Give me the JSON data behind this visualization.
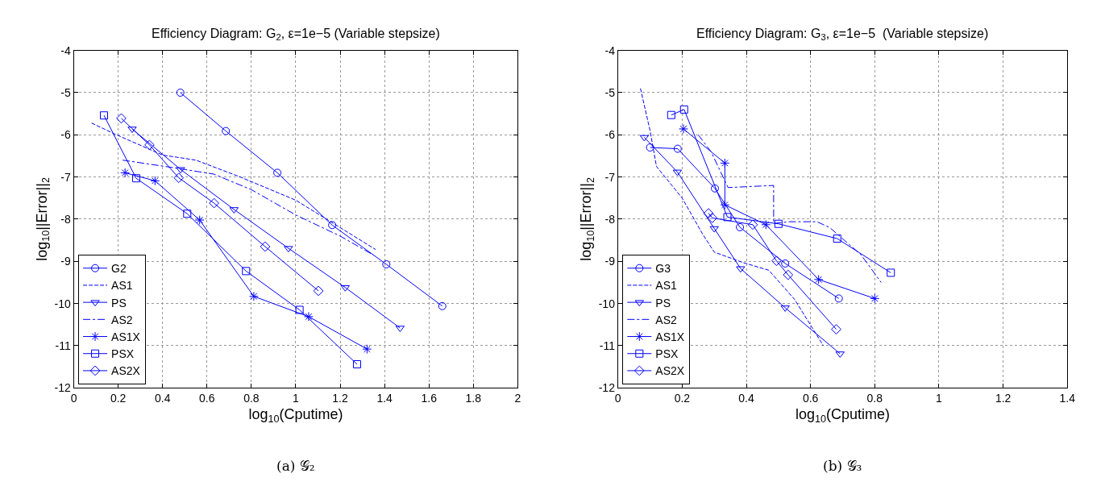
{
  "chart_data": [
    {
      "type": "line",
      "title": "Efficiency Diagram: G$_{2}$, ε=1e−5 (Variable stepsize)",
      "xlabel": "log$_{10}$(Cputime)",
      "ylabel": "log$_{10}$||Error||$_{2}$",
      "xlim": [
        0,
        2
      ],
      "xticks": [
        0,
        0.2,
        0.4,
        0.6,
        0.8,
        1,
        1.2,
        1.4,
        1.6,
        1.8,
        2
      ],
      "ylim": [
        -12,
        -4
      ],
      "yticks": [
        -12,
        -11,
        -10,
        -9,
        -8,
        -7,
        -6,
        -5,
        -4
      ],
      "grid": true,
      "legend": "bottom left",
      "annotations": [
        "(a) 𝒢₂"
      ],
      "series": [
        {
          "name": "G2",
          "color": "#0000ff",
          "marker": "circle",
          "line_style": "solid",
          "x": [
            0.48,
            0.685,
            0.917,
            1.164,
            1.408,
            1.66
          ],
          "values": [
            -5.0,
            -5.91,
            -6.9,
            -8.14,
            -9.07,
            -10.06
          ]
        },
        {
          "name": "AS1",
          "color": "#0000ff",
          "marker": "none",
          "line_style": "dashed",
          "x": [
            0.08,
            0.18,
            0.4,
            0.55,
            0.75,
            1.0,
            1.2,
            1.36
          ],
          "values": [
            -5.72,
            -5.97,
            -6.48,
            -6.6,
            -7.0,
            -7.55,
            -8.2,
            -8.72
          ]
        },
        {
          "name": "PS",
          "color": "#0000ff",
          "marker": "triangle",
          "line_style": "solid",
          "x": [
            0.263,
            0.481,
            0.722,
            0.967,
            1.223,
            1.47
          ],
          "values": [
            -5.86,
            -6.82,
            -7.77,
            -8.69,
            -9.62,
            -10.58
          ]
        },
        {
          "name": "AS2",
          "color": "#0000ff",
          "marker": "none",
          "line_style": "dashdot",
          "x": [
            0.22,
            0.45,
            0.63,
            0.8,
            1.0,
            1.2,
            1.35
          ],
          "values": [
            -6.6,
            -6.78,
            -6.93,
            -7.3,
            -7.9,
            -8.4,
            -8.85
          ]
        },
        {
          "name": "AS1X",
          "color": "#0000ff",
          "marker": "cross",
          "line_style": "solid",
          "x": [
            0.231,
            0.366,
            0.567,
            0.811,
            1.058,
            1.321
          ],
          "values": [
            -6.9,
            -7.09,
            -8.02,
            -9.83,
            -10.31,
            -11.08
          ]
        },
        {
          "name": "PSX",
          "color": "#0000ff",
          "marker": "square",
          "line_style": "solid",
          "x": [
            0.136,
            0.281,
            0.511,
            0.776,
            1.017,
            1.276
          ],
          "values": [
            -5.54,
            -7.03,
            -7.87,
            -9.23,
            -10.15,
            -11.44
          ]
        },
        {
          "name": "AS2X",
          "color": "#0000ff",
          "marker": "diamond",
          "line_style": "solid",
          "x": [
            0.214,
            0.341,
            0.473,
            0.632,
            0.862,
            1.102
          ],
          "values": [
            -5.61,
            -6.24,
            -7.02,
            -7.62,
            -8.65,
            -9.7
          ]
        }
      ]
    },
    {
      "type": "line",
      "title": "Efficiency Diagram: G$_{3}$, ε=1e−5  (Variable stepsize)",
      "xlabel": "log$_{10}$(Cputime)",
      "ylabel": "log$_{10}$||Error||$_{2}$",
      "xlim": [
        0,
        1.4
      ],
      "xticks": [
        0,
        0.2,
        0.4,
        0.6,
        0.8,
        1,
        1.2,
        1.4
      ],
      "ylim": [
        -12,
        -4
      ],
      "yticks": [
        -12,
        -11,
        -10,
        -9,
        -8,
        -7,
        -6,
        -5,
        -4
      ],
      "grid": true,
      "legend": "bottom left",
      "annotations": [
        "(b) 𝒢₃"
      ],
      "series": [
        {
          "name": "G3",
          "color": "#0000ff",
          "marker": "circle",
          "line_style": "solid",
          "x": [
            0.1,
            0.186,
            0.302,
            0.38,
            0.521,
            0.688
          ],
          "values": [
            -6.3,
            -6.33,
            -7.27,
            -8.19,
            -9.05,
            -9.88
          ]
        },
        {
          "name": "AS1",
          "color": "#0000ff",
          "marker": "none",
          "line_style": "dashed",
          "x": [
            0.07,
            0.1,
            0.12,
            0.2,
            0.265,
            0.3,
            0.39,
            0.47,
            0.55,
            0.64
          ],
          "values": [
            -4.9,
            -5.9,
            -6.75,
            -7.5,
            -8.37,
            -8.78,
            -9.03,
            -9.21,
            -9.9,
            -11.0
          ]
        },
        {
          "name": "PS",
          "color": "#0000ff",
          "marker": "triangle",
          "line_style": "solid",
          "x": [
            0.082,
            0.185,
            0.3,
            0.382,
            0.521,
            0.692
          ],
          "values": [
            -6.06,
            -6.88,
            -8.22,
            -9.17,
            -10.1,
            -11.19
          ]
        },
        {
          "name": "AS2",
          "color": "#0000ff",
          "marker": "none",
          "line_style": "dashdot",
          "x": [
            0.25,
            0.29,
            0.343,
            0.485,
            0.485,
            0.535,
            0.62,
            0.66,
            0.757,
            0.82
          ],
          "values": [
            -6.0,
            -6.4,
            -7.25,
            -7.2,
            -8.1,
            -8.06,
            -8.06,
            -8.2,
            -8.84,
            -9.5
          ]
        },
        {
          "name": "AS1X",
          "color": "#0000ff",
          "marker": "cross",
          "line_style": "solid",
          "x": [
            0.204,
            0.333,
            0.333,
            0.461,
            0.625,
            0.8
          ],
          "values": [
            -5.86,
            -6.67,
            -7.66,
            -8.13,
            -9.43,
            -9.88
          ]
        },
        {
          "name": "PSX",
          "color": "#0000ff",
          "marker": "square",
          "line_style": "solid",
          "x": [
            0.166,
            0.206,
            0.341,
            0.5,
            0.683,
            0.85
          ],
          "values": [
            -5.53,
            -5.4,
            -7.95,
            -8.11,
            -8.46,
            -9.27
          ]
        },
        {
          "name": "AS2X",
          "color": "#0000ff",
          "marker": "diamond",
          "line_style": "solid",
          "x": [
            0.282,
            0.294,
            0.42,
            0.494,
            0.53,
            0.68
          ],
          "values": [
            -7.86,
            -7.97,
            -8.13,
            -8.99,
            -9.32,
            -10.61
          ]
        }
      ]
    }
  ]
}
